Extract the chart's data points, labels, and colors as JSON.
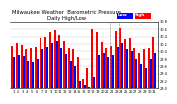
{
  "title": "Milwaukee Weather  Barometric Pressure",
  "subtitle": "Daily High/Low",
  "legend_high": "High",
  "legend_low": "Low",
  "color_high": "#FF0000",
  "color_low": "#0000FF",
  "background_color": "#FFFFFF",
  "ylim": [
    29.0,
    30.8
  ],
  "ytick_labels": [
    "29.0",
    "29.2",
    "29.4",
    "29.6",
    "29.8",
    "30.0",
    "30.2",
    "30.4",
    "30.6",
    "30.8"
  ],
  "ytick_vals": [
    29.0,
    29.2,
    29.4,
    29.6,
    29.8,
    30.0,
    30.2,
    30.4,
    30.6,
    30.8
  ],
  "days": [
    "1",
    "2",
    "3",
    "4",
    "5",
    "6",
    "7",
    "8",
    "9",
    "10",
    "11",
    "12",
    "13",
    "14",
    "15",
    "16",
    "17",
    "18",
    "19",
    "20",
    "21",
    "22",
    "23",
    "24",
    "25",
    "26",
    "27",
    "28",
    "29",
    "30",
    "31"
  ],
  "highs": [
    30.15,
    30.22,
    30.18,
    30.05,
    30.08,
    30.12,
    30.35,
    30.4,
    30.52,
    30.58,
    30.45,
    30.28,
    30.1,
    30.05,
    29.85,
    29.25,
    29.55,
    30.6,
    30.52,
    30.25,
    30.08,
    30.15,
    30.55,
    30.62,
    30.32,
    30.35,
    30.1,
    29.95,
    30.05,
    30.1,
    30.4
  ],
  "lows": [
    29.85,
    29.9,
    29.88,
    29.75,
    29.72,
    29.8,
    30.05,
    30.12,
    30.22,
    30.28,
    30.1,
    29.92,
    29.75,
    29.6,
    29.2,
    29.1,
    29.05,
    29.3,
    29.9,
    29.95,
    29.85,
    29.9,
    30.12,
    30.22,
    30.05,
    30.0,
    29.8,
    29.65,
    29.55,
    29.8,
    29.95
  ],
  "dashed_lines": [
    20.5,
    22.5
  ],
  "grid_color": "#CCCCCC",
  "bar_width": 0.42,
  "title_fontsize": 3.8,
  "tick_fontsize": 2.5,
  "legend_fontsize": 3.2
}
